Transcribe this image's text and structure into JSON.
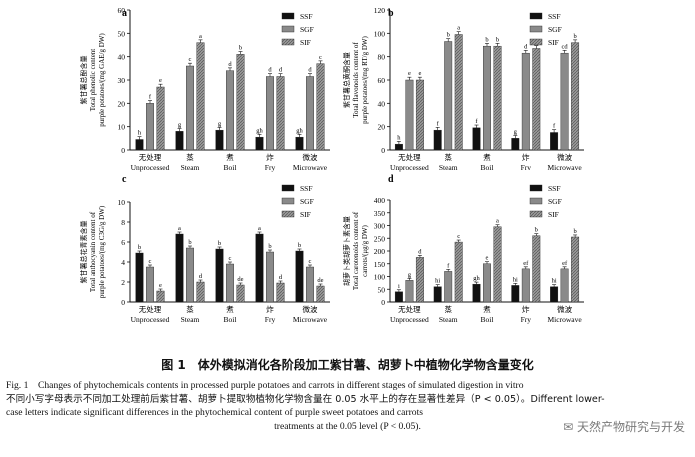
{
  "colors": {
    "SSF": "#111111",
    "SGF": "#8a8a8a",
    "SIF": "#8a8a8a"
  },
  "chart_data": [
    {
      "panel": "a",
      "type": "bar",
      "ylabel_lines": [
        "紫甘薯总酚含量",
        "Total phenolic content",
        "purple potatoes/(mg GAE/g DW)"
      ],
      "ylim": [
        0,
        60
      ],
      "yticks": [
        0,
        10,
        20,
        30,
        40,
        50,
        60
      ],
      "categories_cn": [
        "无处理",
        "蒸",
        "煮",
        "炸",
        "微波"
      ],
      "categories_en": [
        "Unprocessed",
        "Steam",
        "Boil",
        "Fry",
        "Microwave"
      ],
      "series": [
        {
          "name": "SSF",
          "values": [
            4.5,
            8,
            8.5,
            5.5,
            5.5
          ],
          "labels": [
            "h",
            "g",
            "g",
            "gh",
            "gh"
          ]
        },
        {
          "name": "SGF",
          "values": [
            20,
            36,
            34,
            31.5,
            31.5
          ],
          "labels": [
            "f",
            "c",
            "d",
            "d",
            "d"
          ]
        },
        {
          "name": "SIF",
          "values": [
            27,
            46,
            41,
            31.5,
            37
          ],
          "labels": [
            "e",
            "a",
            "b",
            "d",
            "c"
          ]
        }
      ]
    },
    {
      "panel": "b",
      "type": "bar",
      "ylabel_lines": [
        "紫甘薯总黄酮含量",
        "Total flavonoids content of",
        "purple potatoes/(mg RT/g DW)"
      ],
      "ylim": [
        0,
        120
      ],
      "yticks": [
        0,
        20,
        40,
        60,
        80,
        100,
        120
      ],
      "categories_cn": [
        "无处理",
        "蒸",
        "煮",
        "炸",
        "微波"
      ],
      "categories_en": [
        "Unprocessed",
        "Steam",
        "Boil",
        "Frv",
        "Microwave"
      ],
      "series": [
        {
          "name": "SSF",
          "values": [
            5,
            17,
            19,
            10,
            15
          ],
          "labels": [
            "h",
            "f",
            "f",
            "g",
            "f"
          ]
        },
        {
          "name": "SGF",
          "values": [
            60,
            93,
            89,
            83,
            83
          ],
          "labels": [
            "e",
            "b",
            "b",
            "d",
            "cd"
          ]
        },
        {
          "name": "SIF",
          "values": [
            60,
            99,
            89,
            87,
            92
          ],
          "labels": [
            "e",
            "a",
            "b",
            "bc",
            "b"
          ]
        }
      ]
    },
    {
      "panel": "c",
      "type": "bar",
      "ylabel_lines": [
        "紫甘薯总花青素含量",
        "Total anthocyanin content of",
        "purple potatoes/(mg C3G/g DW)"
      ],
      "ylim": [
        0,
        10
      ],
      "yticks": [
        0,
        2,
        4,
        6,
        8,
        10
      ],
      "categories_cn": [
        "无处理",
        "蒸",
        "煮",
        "炸",
        "微波"
      ],
      "categories_en": [
        "Unprocessed",
        "Steam",
        "Boil",
        "Fry",
        "Microwave"
      ],
      "series": [
        {
          "name": "SSF",
          "values": [
            4.9,
            6.8,
            5.3,
            6.8,
            5.1
          ],
          "labels": [
            "b",
            "a",
            "b",
            "a",
            "b"
          ]
        },
        {
          "name": "SGF",
          "values": [
            3.5,
            5.4,
            3.8,
            5.0,
            3.5
          ],
          "labels": [
            "c",
            "b",
            "c",
            "b",
            "c"
          ]
        },
        {
          "name": "SIF",
          "values": [
            1.1,
            2.0,
            1.7,
            1.9,
            1.6
          ],
          "labels": [
            "e",
            "d",
            "de",
            "d",
            "de"
          ]
        }
      ]
    },
    {
      "panel": "d",
      "type": "bar",
      "ylabel_lines": [
        "胡萝卜类胡萝卜素含量",
        "Total carotenoids content of",
        "carrots/(μg/g DW)"
      ],
      "ylim": [
        0,
        400
      ],
      "yticks": [
        0,
        50,
        100,
        150,
        200,
        250,
        300,
        350,
        400
      ],
      "categories_cn": [
        "无处理",
        "蒸",
        "煮",
        "炸",
        "微波"
      ],
      "categories_en": [
        "Unprocessed",
        "Steam",
        "Boil",
        "Fry",
        "Microwave"
      ],
      "series": [
        {
          "name": "SSF",
          "values": [
            40,
            60,
            70,
            65,
            60
          ],
          "labels": [
            "i",
            "hi",
            "gh",
            "hi",
            "hi"
          ]
        },
        {
          "name": "SGF",
          "values": [
            85,
            120,
            150,
            130,
            130
          ],
          "labels": [
            "g",
            "f",
            "e",
            "ef",
            "ef"
          ]
        },
        {
          "name": "SIF",
          "values": [
            175,
            235,
            295,
            260,
            255
          ],
          "labels": [
            "d",
            "c",
            "a",
            "b",
            "b"
          ]
        }
      ]
    }
  ],
  "figure": {
    "title": "图 1　体外模拟消化各阶段加工紫甘薯、胡萝卜中植物化学物含量变化",
    "caption_en_line1": "Fig. 1　Changes of phytochemicals contents in processed purple potatoes and carrots in different stages of simulated digestion in vitro",
    "caption_zh": "不同小写字母表示不同加工处理前后紫甘薯、胡萝卜提取物植物化学物含量在 0.05 水平上的存在显著性差异（P < 0.05）。Different lower-",
    "caption_en_line2": "case letters indicate significant differences in the phytochemical content of purple sweet potatoes and carrots",
    "caption_en_line3": "treatments at the 0.05 level (P < 0.05).",
    "watermark": "天然产物研究与开发"
  }
}
